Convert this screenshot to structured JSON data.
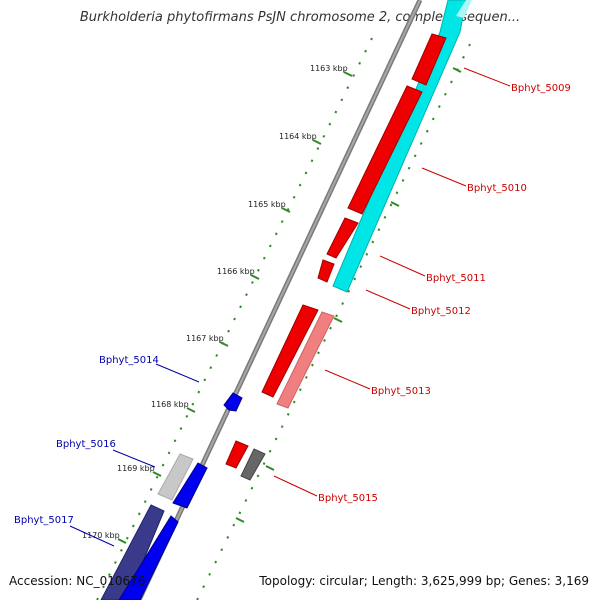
{
  "title": "Burkholderia phytofirmans PsJN chromosome 2, complete sequen...",
  "footer": {
    "accession": "Accession: NC_010676",
    "topology": "Topology: circular; Length: 3,625,999 bp; Genes: 3,169"
  },
  "scale_ticks": [
    {
      "label": "1163 kbp"
    },
    {
      "label": "1164 kbp"
    },
    {
      "label": "1165 kbp"
    },
    {
      "label": "1166 kbp"
    },
    {
      "label": "1167 kbp"
    },
    {
      "label": "1168 kbp"
    },
    {
      "label": "1169 kbp"
    },
    {
      "label": "1170 kbp"
    }
  ],
  "genes": [
    {
      "label": "Bphyt_5009",
      "strand": "forward",
      "color": "#cc0000"
    },
    {
      "label": "Bphyt_5010",
      "strand": "forward",
      "color": "#cc0000"
    },
    {
      "label": "Bphyt_5011",
      "strand": "forward",
      "color": "#cc0000"
    },
    {
      "label": "Bphyt_5012",
      "strand": "forward",
      "color": "#cc0000"
    },
    {
      "label": "Bphyt_5013",
      "strand": "forward",
      "color": "#cc0000"
    },
    {
      "label": "Bphyt_5014",
      "strand": "reverse",
      "color": "#0000aa"
    },
    {
      "label": "Bphyt_5015",
      "strand": "forward",
      "color": "#cc0000"
    },
    {
      "label": "Bphyt_5016",
      "strand": "reverse",
      "color": "#0000aa"
    },
    {
      "label": "Bphyt_5017",
      "strand": "reverse",
      "color": "#0000aa"
    }
  ],
  "colors": {
    "backbone": "#888888",
    "forward_cds": "#ff0000",
    "reverse_cds": "#0000ff",
    "forward_similarity": "#00ffff",
    "reverse_similarity": "#3a3a8a",
    "scale_tick": "#2e8b22",
    "forward_label": "#cc0000",
    "reverse_label": "#0000aa"
  }
}
